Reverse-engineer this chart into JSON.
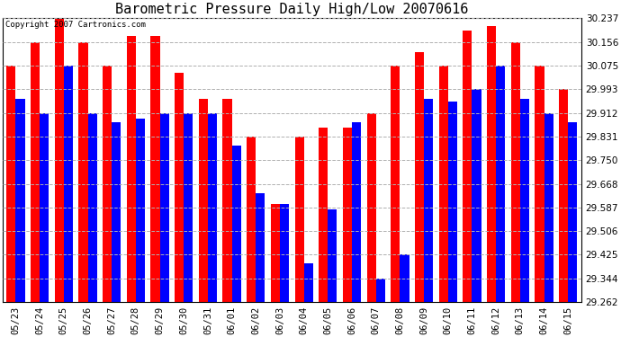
{
  "title": "Barometric Pressure Daily High/Low 20070616",
  "copyright_text": "Copyright 2007 Cartronics.com",
  "dates": [
    "05/23",
    "05/24",
    "05/25",
    "05/26",
    "05/27",
    "05/28",
    "05/29",
    "05/30",
    "05/31",
    "06/01",
    "06/02",
    "06/03",
    "06/04",
    "06/05",
    "06/06",
    "06/07",
    "06/08",
    "06/09",
    "06/10",
    "06/11",
    "06/12",
    "06/13",
    "06/14",
    "06/15"
  ],
  "highs": [
    30.075,
    30.156,
    30.237,
    30.156,
    30.075,
    30.175,
    30.175,
    30.05,
    29.96,
    29.96,
    29.831,
    29.6,
    29.831,
    29.86,
    29.86,
    29.912,
    30.075,
    30.12,
    30.075,
    30.195,
    30.21,
    30.156,
    30.075,
    29.993
  ],
  "lows": [
    29.96,
    29.912,
    30.075,
    29.912,
    29.88,
    29.893,
    29.912,
    29.912,
    29.912,
    29.8,
    29.637,
    29.6,
    29.395,
    29.58,
    29.88,
    29.344,
    29.425,
    29.96,
    29.95,
    29.993,
    30.075,
    29.96,
    29.912,
    29.88
  ],
  "bar_color_high": "#FF0000",
  "bar_color_low": "#0000FF",
  "bg_color": "#FFFFFF",
  "plot_bg_color": "#FFFFFF",
  "grid_color": "#B0B0B0",
  "yticks": [
    29.262,
    29.344,
    29.425,
    29.506,
    29.587,
    29.668,
    29.75,
    29.831,
    29.912,
    29.993,
    30.075,
    30.156,
    30.237
  ],
  "ymin": 29.262,
  "ymax": 30.237,
  "title_fontsize": 11,
  "tick_fontsize": 7.5,
  "copyright_fontsize": 6.5
}
